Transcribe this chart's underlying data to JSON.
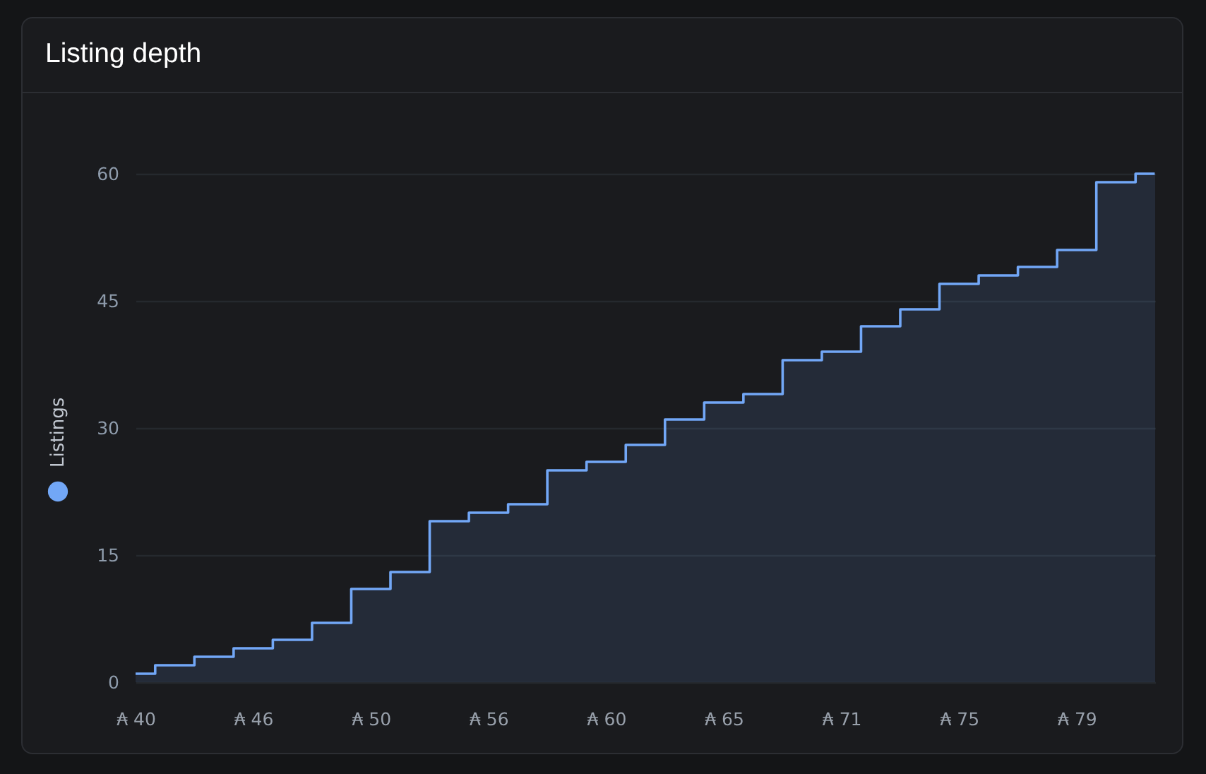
{
  "chart_data": {
    "type": "area",
    "title": "Listing depth",
    "categories": [
      "₳ 40",
      null,
      null,
      "₳ 46",
      null,
      null,
      "₳ 50",
      null,
      null,
      "₳ 56",
      null,
      null,
      "₳ 60",
      null,
      null,
      "₳ 65",
      null,
      null,
      "₳ 71",
      null,
      null,
      "₳ 75",
      null,
      null,
      "₳ 79",
      null,
      null
    ],
    "series": [
      {
        "name": "Listings",
        "color": "#72a7f6",
        "values": [
          1,
          2,
          3,
          4,
          5,
          7,
          11,
          13,
          19,
          20,
          21,
          25,
          26,
          28,
          31,
          33,
          34,
          38,
          39,
          42,
          44,
          47,
          48,
          49,
          51,
          59,
          60
        ]
      }
    ],
    "ylim": [
      0,
      60
    ],
    "yticks": [
      0,
      15,
      30,
      45,
      60
    ],
    "grid": "y",
    "legend": "left"
  }
}
